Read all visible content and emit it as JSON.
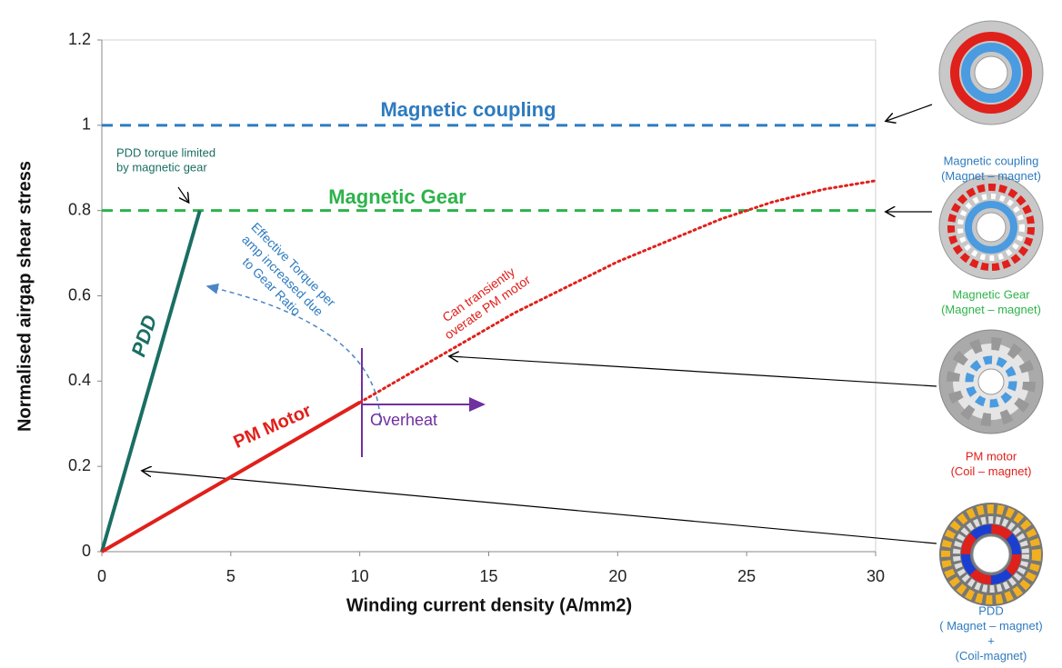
{
  "chart_data": {
    "type": "line",
    "x_label": "Winding current density (A/mm2)",
    "y_label": "Normalised airgap shear stress",
    "xlim": [
      0,
      30
    ],
    "xticks": [
      0,
      5,
      10,
      15,
      20,
      25,
      30
    ],
    "ylim": [
      0,
      1.2
    ],
    "yticks": [
      0,
      0.2,
      0.4,
      0.6,
      0.8,
      1,
      1.2
    ],
    "series": [
      {
        "name": "Magnetic coupling",
        "color": "#2e7bbf",
        "style": "dashed",
        "x": [
          0,
          30
        ],
        "values": [
          1,
          1
        ]
      },
      {
        "name": "Magnetic Gear",
        "color": "#2db34a",
        "style": "dashed",
        "x": [
          0,
          30
        ],
        "values": [
          0.8,
          0.8
        ]
      },
      {
        "name": "PDD",
        "color": "#1a6e63",
        "style": "solid",
        "x": [
          0,
          3.8
        ],
        "values": [
          0,
          0.8
        ]
      },
      {
        "name": "PM Motor",
        "color": "#e0201b",
        "style": "solid",
        "x": [
          0,
          10
        ],
        "values": [
          0,
          0.35
        ]
      },
      {
        "color": "#e0201b",
        "style": "dotted",
        "x": [
          10,
          12,
          14,
          16,
          18,
          20,
          22,
          24,
          26,
          28,
          30
        ],
        "values": [
          0.35,
          0.42,
          0.49,
          0.56,
          0.62,
          0.68,
          0.73,
          0.78,
          0.82,
          0.85,
          0.87
        ]
      }
    ],
    "annotations": {
      "pdd_limit": [
        "PDD torque limited",
        "by magnetic gear"
      ],
      "effective": [
        "Effective Torque per",
        "amp increased due",
        "to Gear Ratio"
      ],
      "transient": [
        "Can transiently",
        "overate  PM motor"
      ],
      "overheat": "Overheat"
    },
    "machines": [
      {
        "lines": [
          "Magnetic coupling",
          "(Magnet – magnet)"
        ],
        "color": "#2e7bbf"
      },
      {
        "lines": [
          "Magnetic Gear",
          "(Magnet – magnet)"
        ],
        "color": "#2db34a"
      },
      {
        "lines": [
          "PM motor",
          "(Coil – magnet)"
        ],
        "color": "#e0201b"
      },
      {
        "lines": [
          "PDD",
          "( Magnet – magnet)",
          "+",
          "(Coil-magnet)"
        ],
        "color": "#2e7bbf"
      }
    ]
  }
}
